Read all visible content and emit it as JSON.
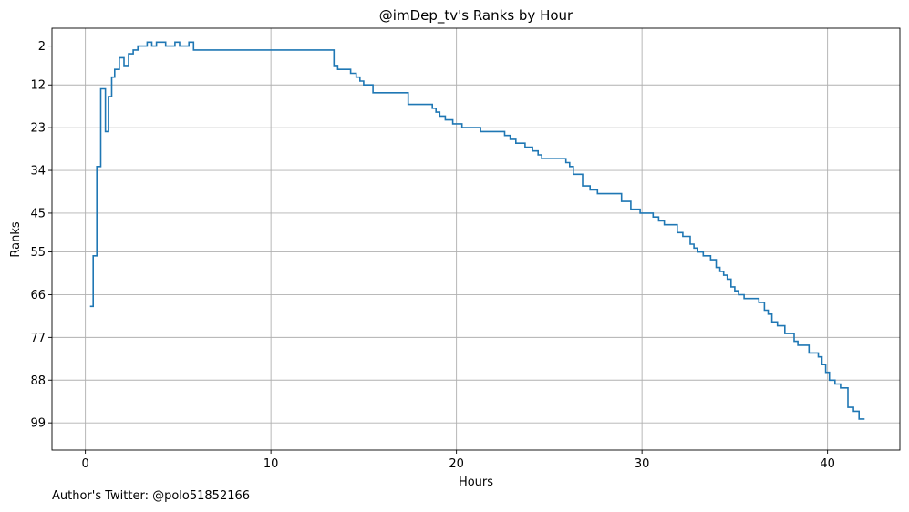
{
  "footer_text": "Author's Twitter: @polo51852166",
  "chart_data": {
    "type": "line",
    "step": true,
    "title": "@imDep_tv's Ranks by Hour",
    "xlabel": "Hours",
    "ylabel": "Ranks",
    "xlim": [
      -1.8,
      43.9
    ],
    "ylim": [
      106,
      -2.6
    ],
    "y_inverted": true,
    "xticks": [
      0,
      10,
      20,
      30,
      40
    ],
    "yticks": [
      2,
      12,
      23,
      34,
      45,
      55,
      66,
      77,
      88,
      99
    ],
    "grid": true,
    "legend": "none",
    "series_color": "#1f77b4",
    "series": [
      {
        "x": [
          0.25,
          0.42,
          0.62,
          0.83,
          1.08,
          1.25,
          1.42,
          1.58,
          1.83,
          2.08,
          2.33,
          2.58,
          2.83,
          3.33,
          3.58,
          3.83,
          4.33,
          4.83,
          5.08,
          5.58,
          5.83,
          13.4,
          13.6,
          14.3,
          14.6,
          14.8,
          15.0,
          15.5,
          15.7,
          17.4,
          18.7,
          18.9,
          19.1,
          19.4,
          19.8,
          20.3,
          21.3,
          21.6,
          22.6,
          22.9,
          23.2,
          23.7,
          24.1,
          24.4,
          24.6,
          24.9,
          25.9,
          26.1,
          26.3,
          26.8,
          27.2,
          27.6,
          28.9,
          29.4,
          29.9,
          30.6,
          30.9,
          31.2,
          31.9,
          32.2,
          32.6,
          32.8,
          33.0,
          33.3,
          33.7,
          34.0,
          34.2,
          34.4,
          34.6,
          34.8,
          35.0,
          35.2,
          35.5,
          35.7,
          36.3,
          36.6,
          36.8,
          37.0,
          37.3,
          37.7,
          38.2,
          38.4,
          39.0,
          39.5,
          39.7,
          39.9,
          40.1,
          40.4,
          40.7,
          41.1,
          41.4,
          41.7,
          42.0
        ],
        "y": [
          69,
          56,
          33,
          13,
          24,
          15,
          10,
          8,
          5,
          7,
          4,
          3,
          2,
          1,
          2,
          1,
          2,
          1,
          2,
          1,
          3,
          7,
          8,
          9,
          10,
          11,
          12,
          14,
          14,
          17,
          18,
          19,
          20,
          21,
          22,
          23,
          24,
          24,
          25,
          26,
          27,
          28,
          29,
          30,
          31,
          31,
          32,
          33,
          35,
          38,
          39,
          40,
          42,
          44,
          45,
          46,
          47,
          48,
          50,
          51,
          53,
          54,
          55,
          56,
          57,
          59,
          60,
          61,
          62,
          64,
          65,
          66,
          67,
          67,
          68,
          70,
          71,
          73,
          74,
          76,
          78,
          79,
          81,
          82,
          84,
          86,
          88,
          89,
          90,
          95,
          96,
          98,
          98
        ]
      }
    ]
  }
}
